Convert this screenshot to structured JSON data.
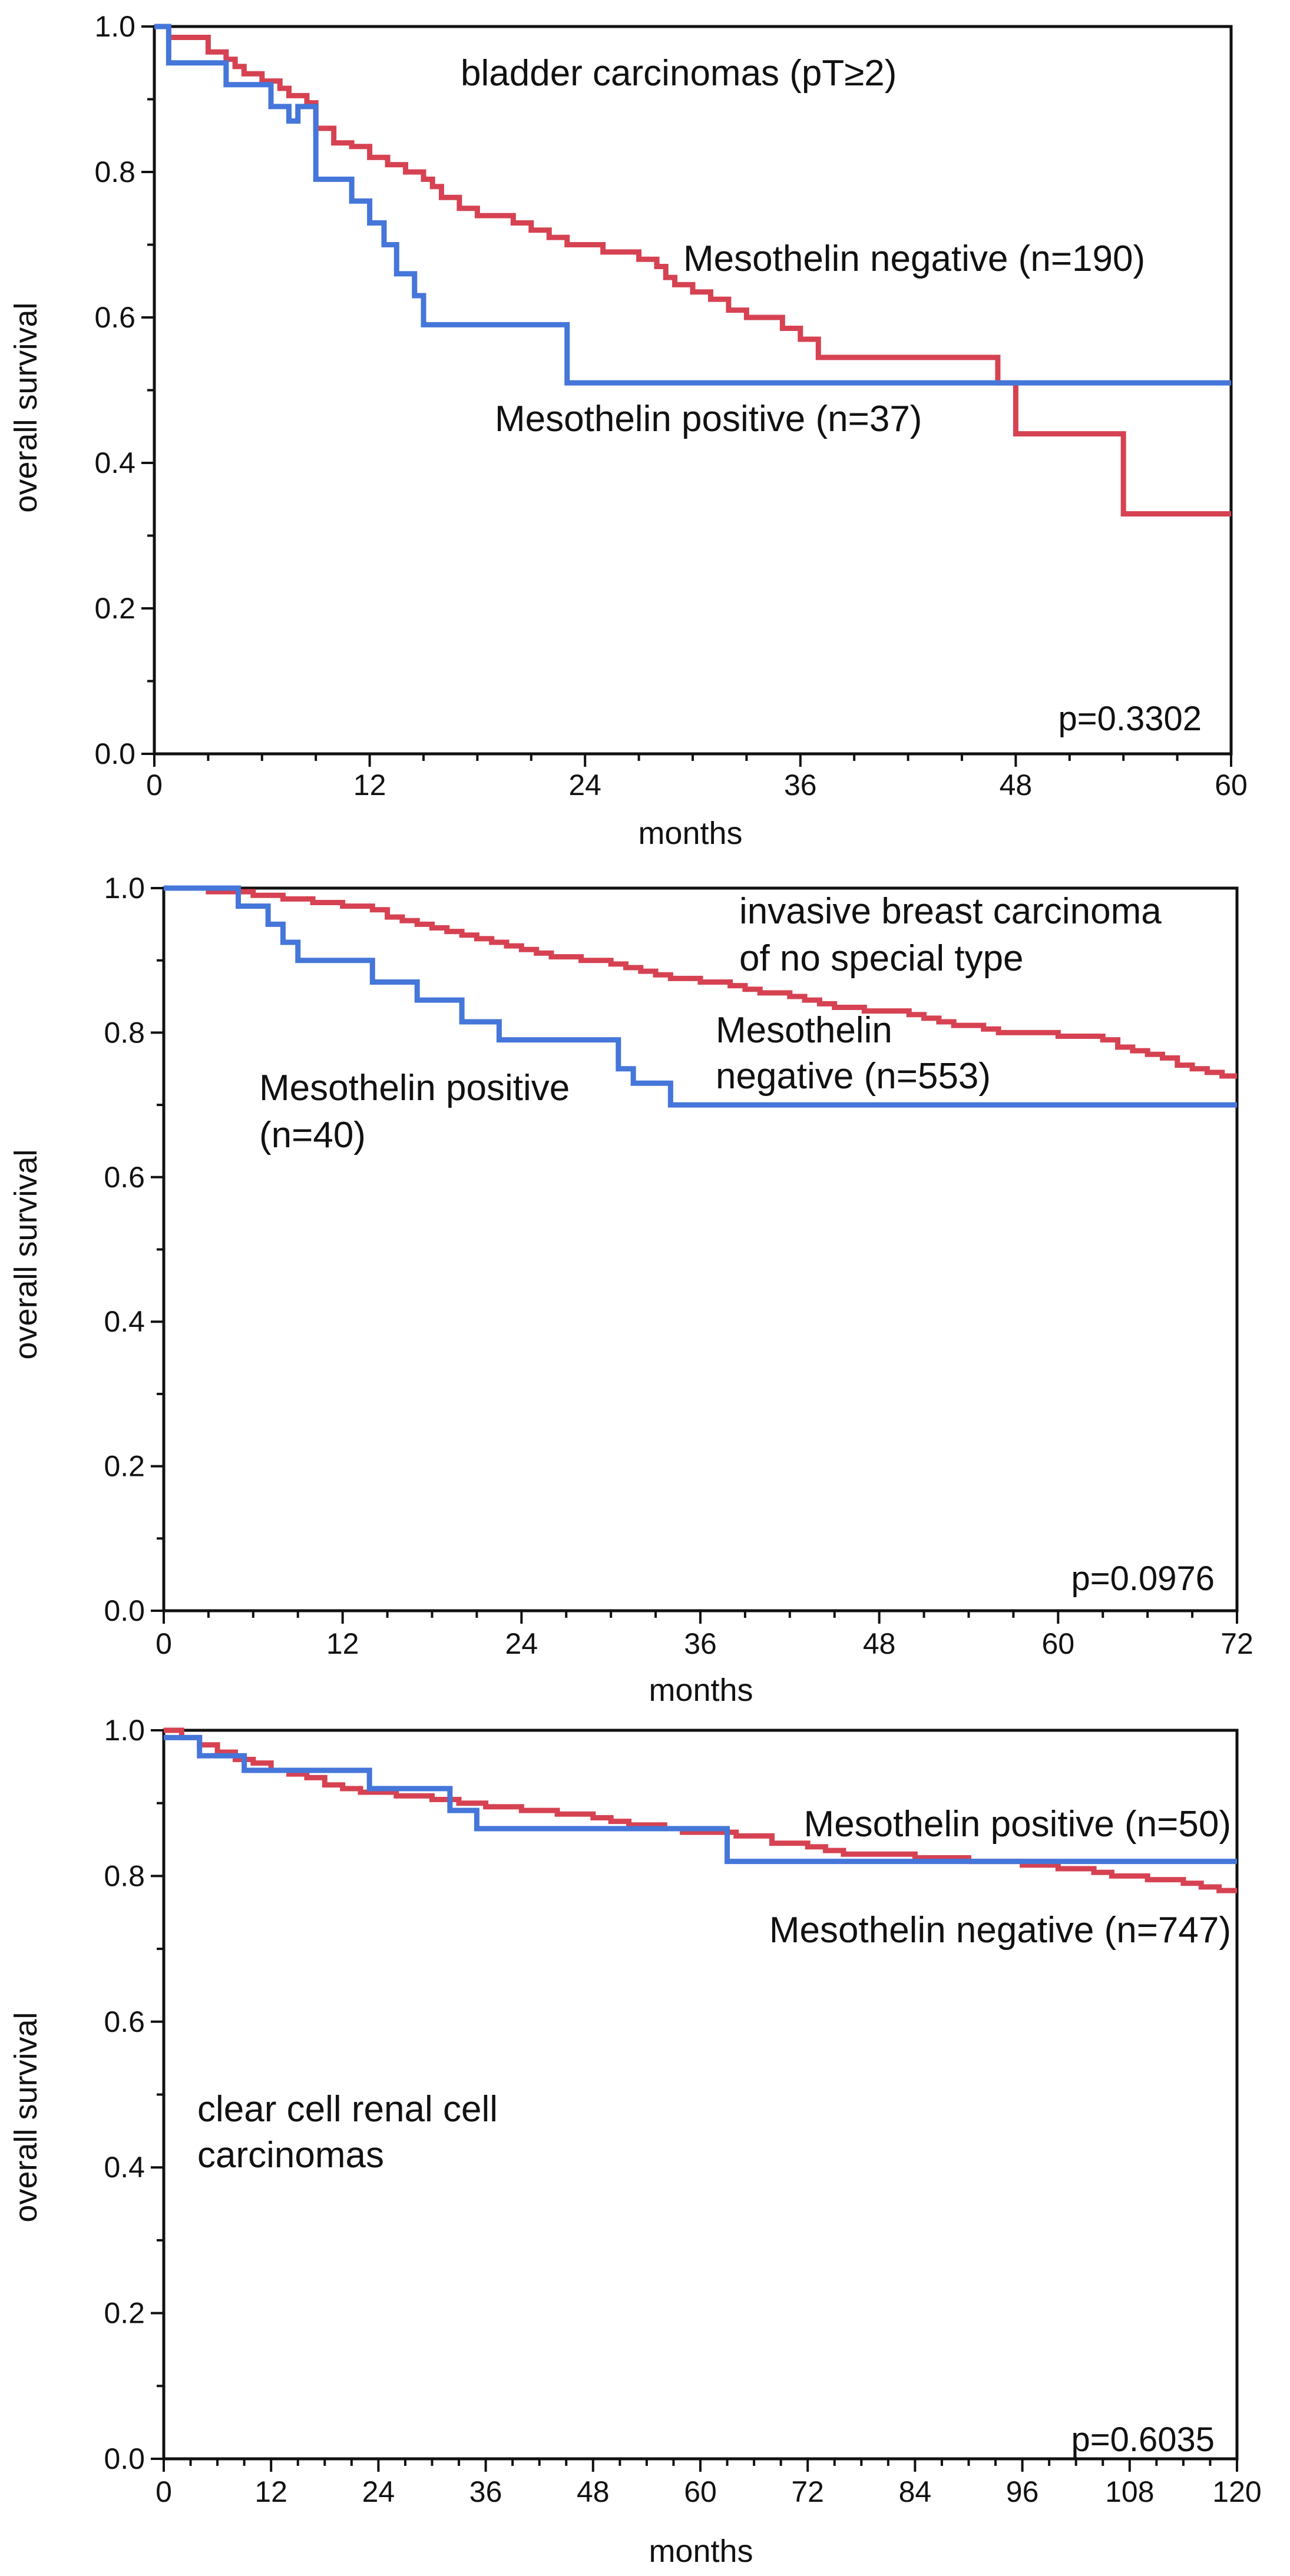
{
  "chart_data": [
    {
      "type": "line",
      "title": "bladder carcinomas (pT≥2)",
      "xlabel": "months",
      "ylabel": "overall survival",
      "xlim": [
        0,
        60
      ],
      "ylim": [
        0,
        1.0
      ],
      "xticks": [
        "0",
        "12",
        "24",
        "36",
        "48",
        "60"
      ],
      "yticks": [
        "0.0",
        "0.2",
        "0.4",
        "0.6",
        "0.8",
        "1.0"
      ],
      "p_value": "p=0.3302",
      "series": [
        {
          "name": "Mesothelin negative (n=190)",
          "color": "#d64252",
          "steps": [
            [
              0,
              1.0
            ],
            [
              0.8,
              0.985
            ],
            [
              2.5,
              0.985
            ],
            [
              3,
              0.965
            ],
            [
              4,
              0.955
            ],
            [
              4.5,
              0.945
            ],
            [
              5,
              0.935
            ],
            [
              6,
              0.925
            ],
            [
              7,
              0.915
            ],
            [
              7.5,
              0.905
            ],
            [
              8.5,
              0.895
            ],
            [
              9,
              0.86
            ],
            [
              10,
              0.84
            ],
            [
              11,
              0.835
            ],
            [
              12,
              0.82
            ],
            [
              13,
              0.81
            ],
            [
              14,
              0.8
            ],
            [
              15,
              0.79
            ],
            [
              15.5,
              0.78
            ],
            [
              16,
              0.765
            ],
            [
              17,
              0.75
            ],
            [
              18,
              0.74
            ],
            [
              20,
              0.73
            ],
            [
              21,
              0.72
            ],
            [
              22,
              0.71
            ],
            [
              23,
              0.7
            ],
            [
              25,
              0.69
            ],
            [
              27,
              0.68
            ],
            [
              28,
              0.67
            ],
            [
              28.5,
              0.655
            ],
            [
              29,
              0.645
            ],
            [
              30,
              0.635
            ],
            [
              31,
              0.625
            ],
            [
              32,
              0.61
            ],
            [
              33,
              0.6
            ],
            [
              35,
              0.585
            ],
            [
              36,
              0.57
            ],
            [
              37,
              0.545
            ],
            [
              47,
              0.51
            ],
            [
              48,
              0.44
            ],
            [
              54,
              0.33
            ],
            [
              60,
              0.33
            ]
          ]
        },
        {
          "name": "Mesothelin positive (n=37)",
          "color": "#4576d9",
          "steps": [
            [
              0,
              1.0
            ],
            [
              0.8,
              0.95
            ],
            [
              4,
              0.92
            ],
            [
              6.5,
              0.89
            ],
            [
              7.5,
              0.87
            ],
            [
              8,
              0.89
            ],
            [
              9,
              0.79
            ],
            [
              11,
              0.76
            ],
            [
              12,
              0.73
            ],
            [
              12.8,
              0.7
            ],
            [
              13.5,
              0.66
            ],
            [
              14.5,
              0.63
            ],
            [
              15,
              0.59
            ],
            [
              23,
              0.51
            ],
            [
              60,
              0.51
            ]
          ]
        }
      ],
      "annotations": {
        "series_label_negative": "Mesothelin negative (n=190)",
        "series_label_positive": "Mesothelin positive (n=37)"
      }
    },
    {
      "type": "line",
      "title": "invasive breast carcinoma of no special type",
      "title_lines": [
        "invasive breast carcinoma",
        "of no special type"
      ],
      "xlabel": "months",
      "ylabel": "overall survival",
      "xlim": [
        0,
        72
      ],
      "ylim": [
        0,
        1.0
      ],
      "xticks": [
        "0",
        "12",
        "24",
        "36",
        "48",
        "60",
        "72"
      ],
      "yticks": [
        "0.0",
        "0.2",
        "0.4",
        "0.6",
        "0.8",
        "1.0"
      ],
      "p_value": "p=0.0976",
      "series": [
        {
          "name": "Mesothelin negative (n=553)",
          "color": "#d64252",
          "steps": [
            [
              0,
              1.0
            ],
            [
              3,
              0.995
            ],
            [
              6,
              0.99
            ],
            [
              8,
              0.985
            ],
            [
              10,
              0.98
            ],
            [
              12,
              0.975
            ],
            [
              14,
              0.97
            ],
            [
              15,
              0.96
            ],
            [
              16,
              0.955
            ],
            [
              17,
              0.95
            ],
            [
              18,
              0.945
            ],
            [
              19,
              0.94
            ],
            [
              20,
              0.935
            ],
            [
              21,
              0.93
            ],
            [
              22,
              0.925
            ],
            [
              23,
              0.92
            ],
            [
              24,
              0.915
            ],
            [
              25,
              0.91
            ],
            [
              26,
              0.905
            ],
            [
              28,
              0.9
            ],
            [
              30,
              0.895
            ],
            [
              31,
              0.89
            ],
            [
              32,
              0.885
            ],
            [
              33,
              0.88
            ],
            [
              34,
              0.875
            ],
            [
              36,
              0.87
            ],
            [
              38,
              0.865
            ],
            [
              39,
              0.86
            ],
            [
              40,
              0.855
            ],
            [
              42,
              0.85
            ],
            [
              43,
              0.845
            ],
            [
              44,
              0.84
            ],
            [
              45,
              0.835
            ],
            [
              47,
              0.83
            ],
            [
              50,
              0.825
            ],
            [
              51,
              0.82
            ],
            [
              52,
              0.815
            ],
            [
              53,
              0.81
            ],
            [
              55,
              0.805
            ],
            [
              56,
              0.8
            ],
            [
              60,
              0.795
            ],
            [
              63,
              0.79
            ],
            [
              64,
              0.78
            ],
            [
              65,
              0.775
            ],
            [
              66,
              0.77
            ],
            [
              67,
              0.765
            ],
            [
              68,
              0.755
            ],
            [
              69,
              0.75
            ],
            [
              70,
              0.745
            ],
            [
              71,
              0.74
            ],
            [
              72,
              0.74
            ]
          ]
        },
        {
          "name": "Mesothelin positive (n=40)",
          "color": "#4576d9",
          "steps": [
            [
              0,
              1.0
            ],
            [
              5,
              0.975
            ],
            [
              7,
              0.95
            ],
            [
              8,
              0.925
            ],
            [
              9,
              0.9
            ],
            [
              11,
              0.9
            ],
            [
              11.5,
              0.9
            ],
            [
              12,
              0.9
            ],
            [
              14,
              0.87
            ],
            [
              17,
              0.845
            ],
            [
              20,
              0.815
            ],
            [
              22.5,
              0.79
            ],
            [
              30,
              0.79
            ],
            [
              30.5,
              0.75
            ],
            [
              31,
              0.75
            ],
            [
              31.5,
              0.73
            ],
            [
              34,
              0.7
            ],
            [
              72,
              0.7
            ]
          ]
        }
      ],
      "annotations": {
        "series_label_negative": [
          "Mesothelin",
          "negative (n=553)"
        ],
        "series_label_positive": [
          "Mesothelin positive",
          "(n=40)"
        ]
      }
    },
    {
      "type": "line",
      "title": "clear cell renal cell carcinomas",
      "title_lines": [
        "clear cell renal cell",
        "carcinomas"
      ],
      "xlabel": "months",
      "ylabel": "overall survival",
      "xlim": [
        0,
        120
      ],
      "ylim": [
        0,
        1.0
      ],
      "xticks": [
        "0",
        "12",
        "24",
        "36",
        "48",
        "60",
        "72",
        "84",
        "96",
        "108",
        "120"
      ],
      "yticks": [
        "0.0",
        "0.2",
        "0.4",
        "0.6",
        "0.8",
        "1.0"
      ],
      "p_value": "p=0.6035",
      "series": [
        {
          "name": "Mesothelin negative (n=747)",
          "color": "#d64252",
          "steps": [
            [
              0,
              1.0
            ],
            [
              2,
              0.99
            ],
            [
              4,
              0.98
            ],
            [
              6,
              0.97
            ],
            [
              8,
              0.96
            ],
            [
              10,
              0.955
            ],
            [
              12,
              0.945
            ],
            [
              14,
              0.94
            ],
            [
              16,
              0.935
            ],
            [
              18,
              0.925
            ],
            [
              20,
              0.92
            ],
            [
              22,
              0.915
            ],
            [
              26,
              0.91
            ],
            [
              30,
              0.905
            ],
            [
              33,
              0.9
            ],
            [
              36,
              0.895
            ],
            [
              40,
              0.89
            ],
            [
              44,
              0.885
            ],
            [
              48,
              0.88
            ],
            [
              50,
              0.875
            ],
            [
              52,
              0.87
            ],
            [
              56,
              0.865
            ],
            [
              58,
              0.86
            ],
            [
              64,
              0.855
            ],
            [
              68,
              0.845
            ],
            [
              72,
              0.84
            ],
            [
              74,
              0.835
            ],
            [
              76,
              0.83
            ],
            [
              84,
              0.825
            ],
            [
              90,
              0.82
            ],
            [
              96,
              0.815
            ],
            [
              100,
              0.81
            ],
            [
              104,
              0.805
            ],
            [
              106,
              0.8
            ],
            [
              110,
              0.795
            ],
            [
              114,
              0.79
            ],
            [
              116,
              0.785
            ],
            [
              118,
              0.78
            ],
            [
              120,
              0.78
            ]
          ]
        },
        {
          "name": "Mesothelin positive (n=50)",
          "color": "#4576d9",
          "steps": [
            [
              0,
              0.99
            ],
            [
              4,
              0.965
            ],
            [
              9,
              0.945
            ],
            [
              23,
              0.92
            ],
            [
              32,
              0.89
            ],
            [
              35,
              0.865
            ],
            [
              62,
              0.865
            ],
            [
              63,
              0.82
            ],
            [
              120,
              0.82
            ]
          ]
        }
      ],
      "annotations": {
        "series_label_positive": "Mesothelin positive (n=50)",
        "series_label_negative": "Mesothelin negative (n=747)"
      }
    }
  ]
}
